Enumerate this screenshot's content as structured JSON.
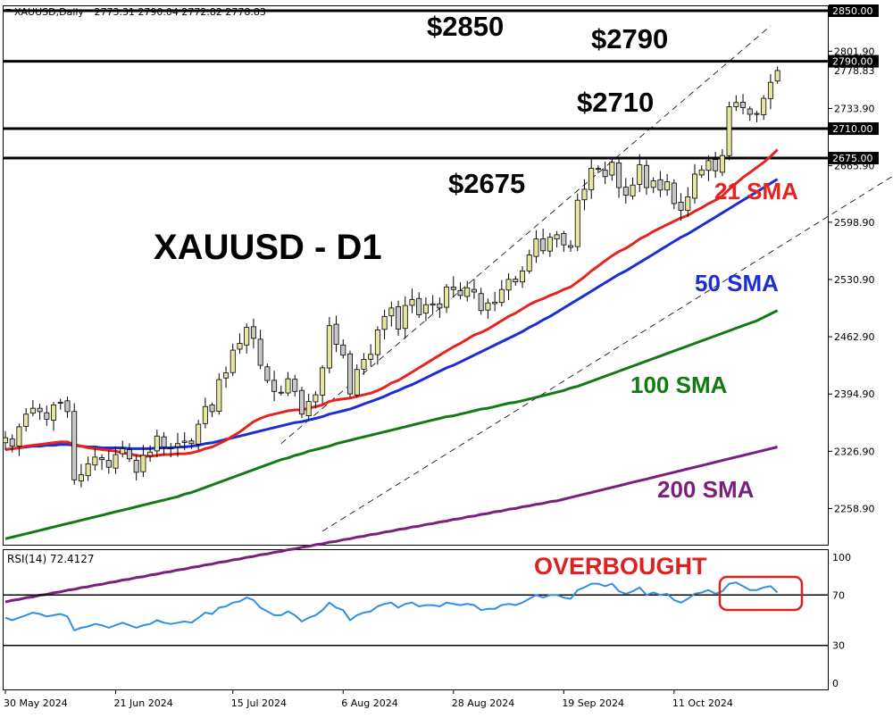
{
  "header": {
    "symbol": "XAUUSD,Daily",
    "ohlc": "2773.31 2790.04 2772.82 2778.83"
  },
  "chart_title": "XAUUSD - D1",
  "levels": [
    {
      "price": 2850,
      "label": "$2850",
      "axis": "2850.00"
    },
    {
      "price": 2790,
      "label": "$2790",
      "axis": "2790.00"
    },
    {
      "price": 2710,
      "label": "$2710",
      "axis": "2710.00"
    },
    {
      "price": 2675,
      "label": "$2675",
      "axis": "2675.00"
    }
  ],
  "sma_labels": {
    "sma21": "21 SMA",
    "sma50": "50 SMA",
    "sma100": "100 SMA",
    "sma200": "200 SMA"
  },
  "rsi": {
    "label": "RSI(14) 72.4127",
    "overbought_label": "OVERBOUGHT"
  },
  "colors": {
    "up": "#e6e6a0",
    "down": "#c8c8c8",
    "sma21": "#e8231e",
    "sma50": "#1b2ed6",
    "sma100": "#137a13",
    "sma200": "#7b1f7d",
    "rsi": "#2f8ee5",
    "overbought": "#e02020"
  },
  "chart_data": {
    "type": "line",
    "title": "XAUUSD - D1",
    "price_axis": {
      "ticks": [
        "2801.90",
        "2733.90",
        "2665.90",
        "2598.90",
        "2530.90",
        "2462.90",
        "2394.90",
        "2326.90",
        "2258.90"
      ],
      "current_price_label": "2778.83"
    },
    "x_ticks": [
      "30 May 2024",
      "21 Jun 2024",
      "15 Jul 2024",
      "6 Aug 2024",
      "28 Aug 2024",
      "19 Sep 2024",
      "11 Oct 2024"
    ],
    "close": [
      2343,
      2333,
      2356,
      2371,
      2378,
      2374,
      2365,
      2382,
      2385,
      2374,
      2293,
      2299,
      2312,
      2320,
      2317,
      2308,
      2323,
      2330,
      2318,
      2302,
      2322,
      2326,
      2345,
      2332,
      2331,
      2336,
      2339,
      2336,
      2359,
      2380,
      2374,
      2412,
      2420,
      2447,
      2455,
      2474,
      2461,
      2429,
      2411,
      2398,
      2397,
      2413,
      2398,
      2371,
      2386,
      2394,
      2426,
      2476,
      2454,
      2441,
      2395,
      2424,
      2436,
      2442,
      2471,
      2487,
      2497,
      2472,
      2500,
      2507,
      2489,
      2501,
      2502,
      2497,
      2522,
      2519,
      2512,
      2521,
      2516,
      2494,
      2503,
      2504,
      2519,
      2531,
      2528,
      2541,
      2560,
      2579,
      2565,
      2581,
      2584,
      2572,
      2569,
      2625,
      2638,
      2663,
      2662,
      2653,
      2670,
      2640,
      2631,
      2643,
      2667,
      2640,
      2648,
      2637,
      2647,
      2621,
      2613,
      2629,
      2656,
      2661,
      2672,
      2660,
      2678,
      2736,
      2741,
      2735,
      2727,
      2728,
      2746,
      2765,
      2779
    ],
    "sma21": [
      2329,
      2330,
      2331,
      2333,
      2334,
      2335,
      2336,
      2337,
      2338,
      2338,
      2335,
      2333,
      2331,
      2330,
      2329,
      2328,
      2327,
      2325,
      2324,
      2322,
      2321,
      2321,
      2322,
      2323,
      2323,
      2324,
      2324,
      2325,
      2327,
      2330,
      2332,
      2336,
      2340,
      2345,
      2350,
      2356,
      2362,
      2366,
      2369,
      2371,
      2373,
      2375,
      2376,
      2376,
      2378,
      2380,
      2382,
      2386,
      2388,
      2389,
      2390,
      2392,
      2394,
      2396,
      2399,
      2403,
      2408,
      2411,
      2416,
      2421,
      2426,
      2431,
      2436,
      2441,
      2446,
      2451,
      2455,
      2460,
      2465,
      2468,
      2472,
      2477,
      2482,
      2487,
      2491,
      2496,
      2501,
      2505,
      2508,
      2512,
      2515,
      2519,
      2522,
      2528,
      2534,
      2541,
      2547,
      2553,
      2559,
      2564,
      2568,
      2573,
      2579,
      2583,
      2588,
      2592,
      2596,
      2600,
      2604,
      2607,
      2612,
      2616,
      2621,
      2625,
      2630,
      2638,
      2645,
      2652,
      2658,
      2664,
      2670,
      2677,
      2685
    ],
    "sma50": [
      2329,
      2330,
      2331,
      2332,
      2333,
      2333,
      2334,
      2334,
      2335,
      2335,
      2334,
      2333,
      2332,
      2332,
      2331,
      2331,
      2331,
      2331,
      2330,
      2330,
      2330,
      2330,
      2331,
      2331,
      2331,
      2332,
      2332,
      2333,
      2334,
      2336,
      2337,
      2339,
      2341,
      2343,
      2345,
      2347,
      2349,
      2351,
      2353,
      2355,
      2357,
      2359,
      2361,
      2362,
      2364,
      2366,
      2368,
      2371,
      2373,
      2375,
      2377,
      2380,
      2383,
      2386,
      2389,
      2392,
      2396,
      2399,
      2403,
      2406,
      2410,
      2414,
      2418,
      2422,
      2426,
      2429,
      2433,
      2437,
      2441,
      2445,
      2449,
      2453,
      2457,
      2461,
      2465,
      2469,
      2474,
      2478,
      2483,
      2487,
      2492,
      2497,
      2502,
      2507,
      2512,
      2517,
      2522,
      2527,
      2532,
      2537,
      2541,
      2546,
      2551,
      2556,
      2561,
      2566,
      2571,
      2576,
      2581,
      2585,
      2590,
      2595,
      2600,
      2605,
      2610,
      2615,
      2620,
      2625,
      2630,
      2635,
      2640,
      2645,
      2650
    ],
    "sma100": [
      2223,
      2225,
      2227,
      2229,
      2231,
      2233,
      2235,
      2237,
      2239,
      2241,
      2243,
      2245,
      2247,
      2249,
      2251,
      2253,
      2255,
      2257,
      2259,
      2261,
      2263,
      2265,
      2267,
      2269,
      2271,
      2273,
      2276,
      2278,
      2281,
      2284,
      2287,
      2290,
      2293,
      2296,
      2299,
      2302,
      2305,
      2308,
      2311,
      2314,
      2317,
      2319,
      2322,
      2324,
      2327,
      2329,
      2331,
      2333,
      2336,
      2338,
      2340,
      2342,
      2344,
      2346,
      2348,
      2350,
      2352,
      2354,
      2356,
      2358,
      2360,
      2362,
      2364,
      2366,
      2368,
      2369,
      2371,
      2373,
      2375,
      2377,
      2378,
      2380,
      2382,
      2384,
      2385,
      2387,
      2389,
      2391,
      2393,
      2395,
      2397,
      2399,
      2402,
      2404,
      2407,
      2410,
      2413,
      2416,
      2419,
      2422,
      2425,
      2428,
      2431,
      2434,
      2437,
      2440,
      2443,
      2446,
      2449,
      2452,
      2455,
      2458,
      2461,
      2464,
      2467,
      2470,
      2473,
      2476,
      2479,
      2482,
      2486,
      2490,
      2494
    ],
    "sma200": [
      2148,
      2150,
      2151,
      2153,
      2154,
      2156,
      2157,
      2159,
      2160,
      2162,
      2163,
      2165,
      2166,
      2168,
      2169,
      2171,
      2172,
      2174,
      2175,
      2177,
      2178,
      2180,
      2181,
      2183,
      2184,
      2186,
      2187,
      2189,
      2190,
      2192,
      2193,
      2195,
      2196,
      2198,
      2199,
      2201,
      2202,
      2204,
      2205,
      2207,
      2208,
      2210,
      2211,
      2213,
      2214,
      2216,
      2217,
      2219,
      2220,
      2222,
      2223,
      2225,
      2226,
      2228,
      2229,
      2231,
      2232,
      2234,
      2235,
      2237,
      2238,
      2240,
      2241,
      2243,
      2244,
      2246,
      2247,
      2249,
      2250,
      2252,
      2253,
      2255,
      2256,
      2258,
      2259,
      2261,
      2262,
      2264,
      2265,
      2267,
      2268,
      2270,
      2272,
      2274,
      2276,
      2278,
      2280,
      2282,
      2284,
      2286,
      2288,
      2290,
      2292,
      2294,
      2296,
      2298,
      2300,
      2302,
      2304,
      2306,
      2308,
      2310,
      2312,
      2314,
      2316,
      2318,
      2320,
      2322,
      2324,
      2326,
      2328,
      2330,
      2332
    ],
    "rsi14": [
      52,
      50,
      52,
      54,
      56,
      55,
      53,
      54,
      55,
      53,
      42,
      44,
      45,
      47,
      46,
      44,
      46,
      48,
      46,
      44,
      46,
      47,
      50,
      48,
      47,
      48,
      49,
      48,
      52,
      56,
      55,
      60,
      61,
      64,
      65,
      68,
      66,
      60,
      57,
      54,
      54,
      57,
      54,
      49,
      52,
      54,
      58,
      64,
      60,
      58,
      50,
      54,
      56,
      57,
      61,
      63,
      64,
      60,
      63,
      64,
      61,
      62,
      62,
      61,
      64,
      63,
      62,
      63,
      62,
      58,
      59,
      59,
      62,
      63,
      62,
      64,
      67,
      70,
      68,
      70,
      70,
      68,
      67,
      74,
      76,
      79,
      79,
      77,
      79,
      73,
      71,
      73,
      76,
      70,
      72,
      70,
      71,
      66,
      64,
      67,
      71,
      72,
      74,
      71,
      73,
      79,
      80,
      77,
      74,
      74,
      76,
      77,
      72
    ],
    "rsi_levels": {
      "overbought": 70,
      "oversold": 30,
      "axis": [
        "100",
        "70",
        "30",
        "0"
      ]
    }
  }
}
